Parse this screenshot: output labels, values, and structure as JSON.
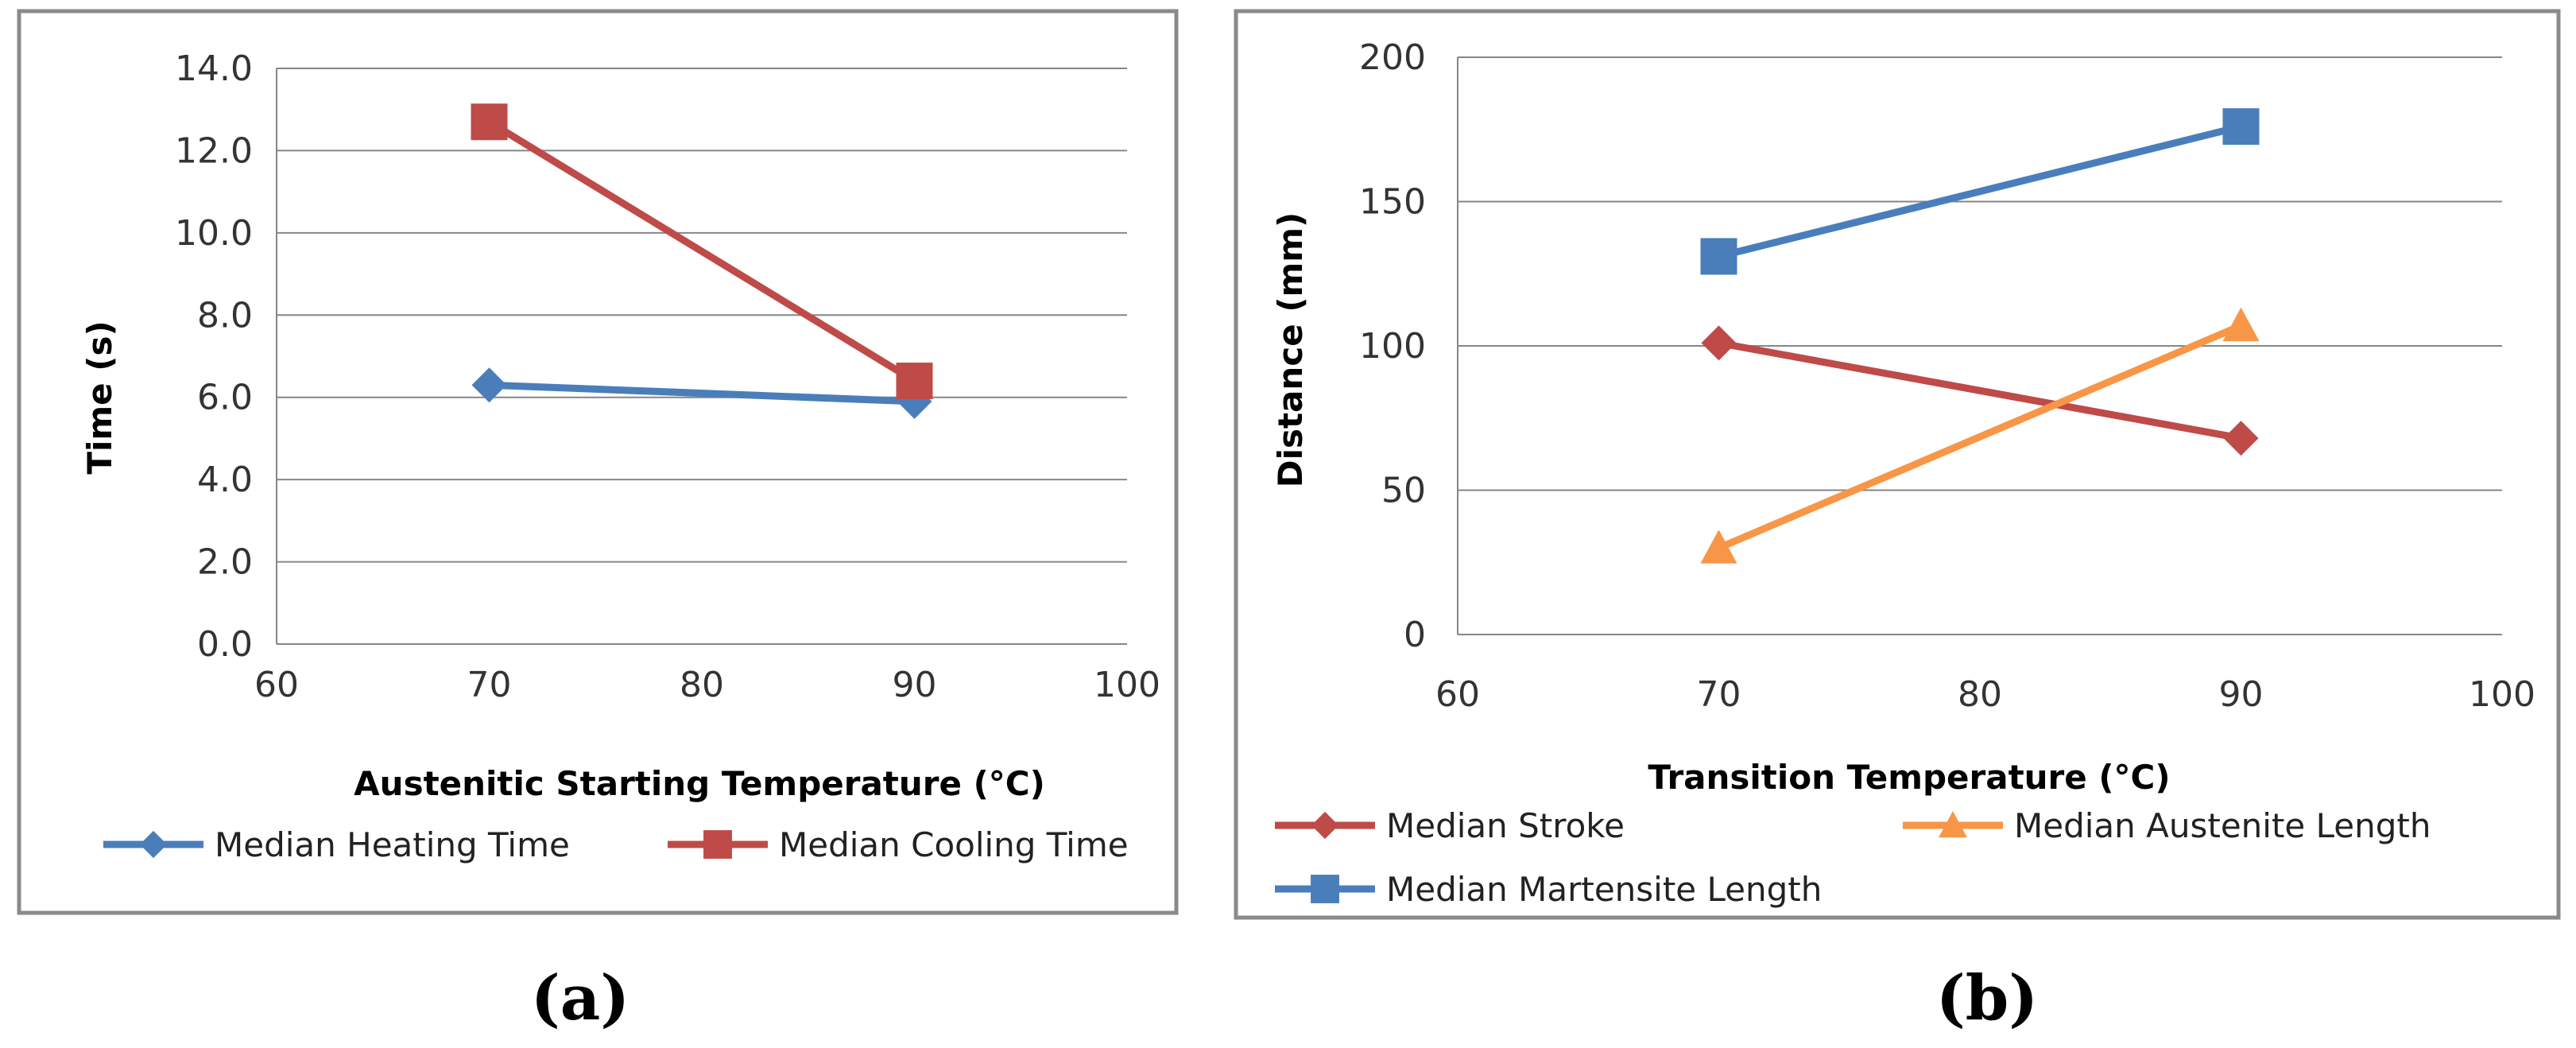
{
  "chart_data": [
    {
      "type": "line",
      "panel_label": "(a)",
      "xlabel": "Austenitic Starting Temperature (°C)",
      "ylabel": "Time (s)",
      "xlim": [
        60,
        100
      ],
      "ylim": [
        0,
        14
      ],
      "xticks": [
        60,
        70,
        80,
        90,
        100
      ],
      "xtick_labels": [
        "60",
        "70",
        "80",
        "90",
        "100"
      ],
      "yticks": [
        0,
        2,
        4,
        6,
        8,
        10,
        12,
        14
      ],
      "ytick_labels": [
        "0.0",
        "2.0",
        "4.0",
        "6.0",
        "8.0",
        "10.0",
        "12.0",
        "14.0"
      ],
      "grid": true,
      "legend_position": "bottom",
      "series": [
        {
          "name": "Median Heating Time",
          "color": "#4a7ebb",
          "marker": "diamond",
          "x": [
            70,
            90
          ],
          "y": [
            6.3,
            5.9
          ]
        },
        {
          "name": "Median Cooling Time",
          "color": "#be4b48",
          "marker": "square",
          "x": [
            70,
            90
          ],
          "y": [
            12.7,
            6.4
          ]
        }
      ]
    },
    {
      "type": "line",
      "panel_label": "(b)",
      "xlabel": "Transition Temperature (°C)",
      "ylabel": "Distance (mm)",
      "xlim": [
        60,
        100
      ],
      "ylim": [
        0,
        200
      ],
      "xticks": [
        60,
        70,
        80,
        90,
        100
      ],
      "xtick_labels": [
        "60",
        "70",
        "80",
        "90",
        "100"
      ],
      "yticks": [
        0,
        50,
        100,
        150,
        200
      ],
      "ytick_labels": [
        "0",
        "50",
        "100",
        "150",
        "200"
      ],
      "grid": true,
      "legend_position": "bottom",
      "series": [
        {
          "name": "Median Stroke",
          "color": "#be4b48",
          "marker": "diamond",
          "x": [
            70,
            90
          ],
          "y": [
            101,
            68
          ]
        },
        {
          "name": "Median Austenite Length",
          "color": "#f79646",
          "marker": "triangle",
          "x": [
            70,
            90
          ],
          "y": [
            30,
            107
          ]
        },
        {
          "name": "Median Martensite Length",
          "color": "#4a7ebb",
          "marker": "square",
          "x": [
            70,
            90
          ],
          "y": [
            131,
            176
          ]
        }
      ]
    }
  ]
}
